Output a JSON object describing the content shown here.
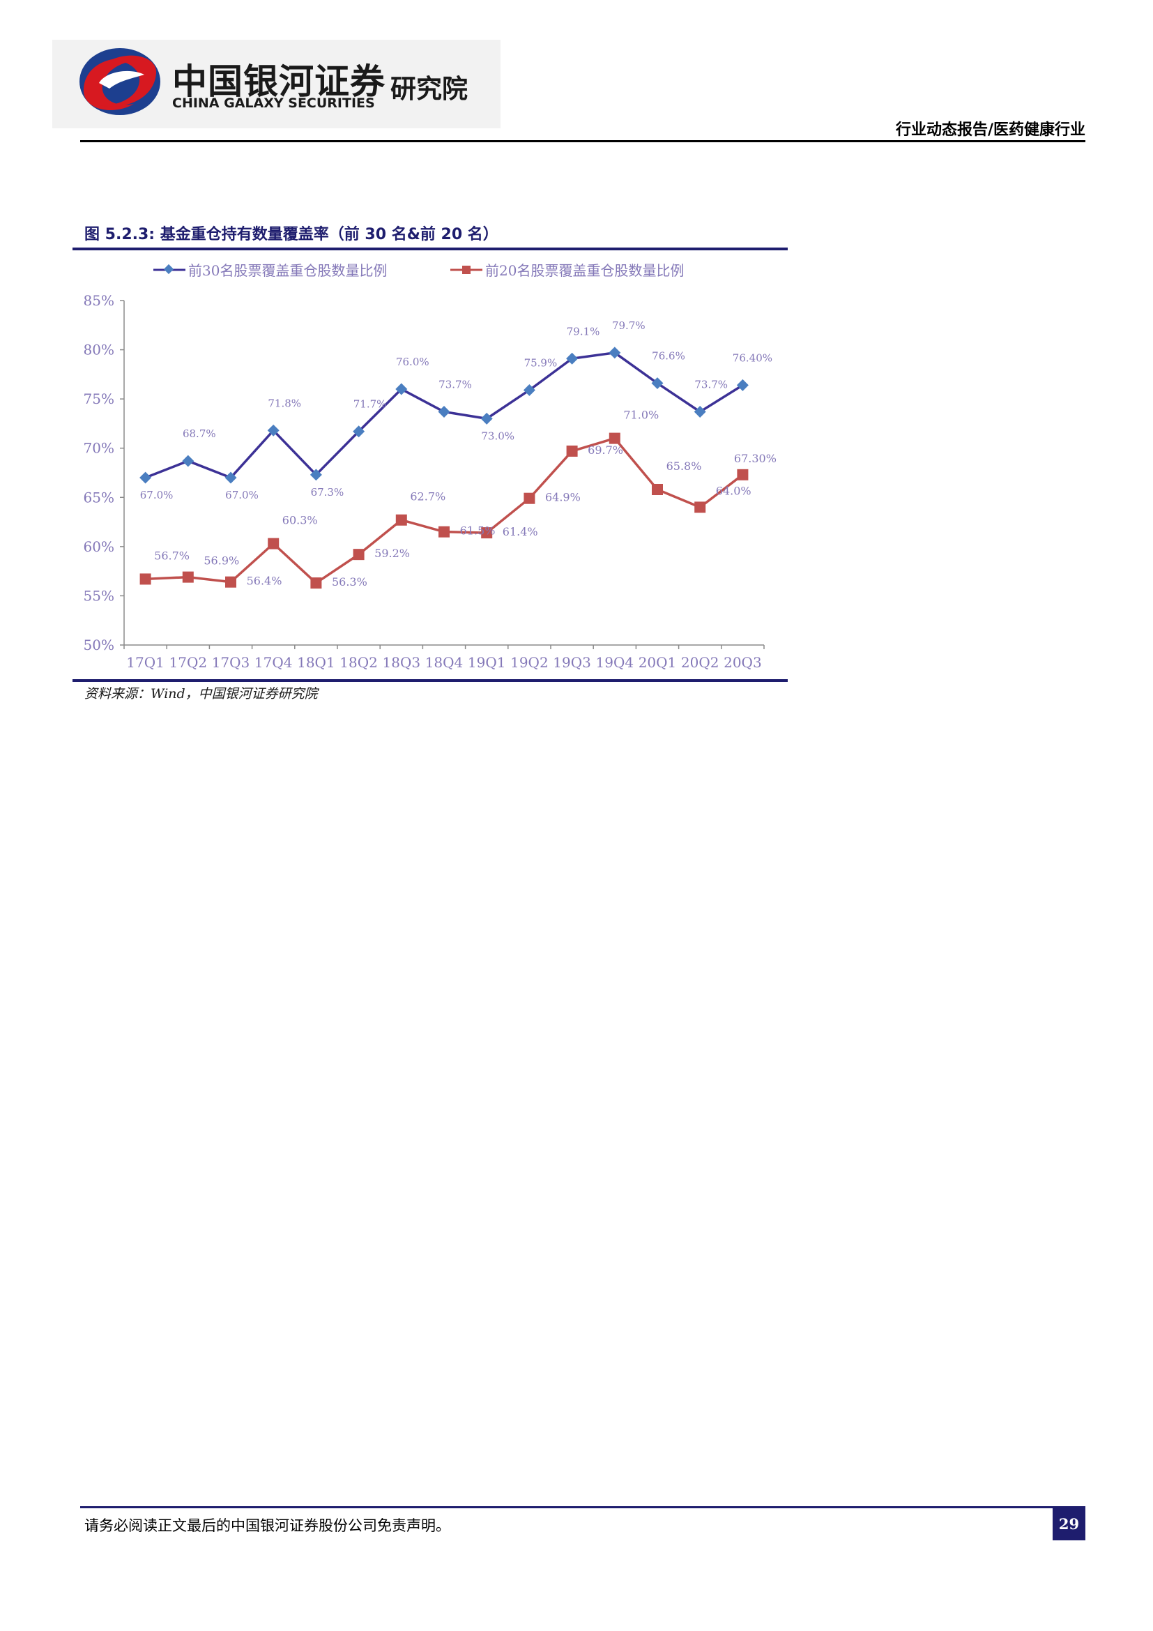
{
  "header": {
    "company_cn": "中国银河证券",
    "company_en": "CHINA GALAXY SECURITIES",
    "institute": "研究院",
    "report_type": "行业动态报告/医药健康行业"
  },
  "figure": {
    "title": "图 5.2.3:  基金重仓持有数量覆盖率（前 30 名&前 20 名）",
    "source": "资料来源：Wind，中国银河证券研究院"
  },
  "colors": {
    "brand_navy": "#1e1d6e",
    "series_top30": "#3c3196",
    "series_top30_marker": "#4a7ec0",
    "series_top20": "#c0504d",
    "logo_red": "#d71920",
    "logo_blue": "#1d3f8f",
    "axis_text": "#8478b8"
  },
  "chart_data": {
    "type": "line",
    "categories": [
      "17Q1",
      "17Q2",
      "17Q3",
      "17Q4",
      "18Q1",
      "18Q2",
      "18Q3",
      "18Q4",
      "19Q1",
      "19Q2",
      "19Q3",
      "19Q4",
      "20Q1",
      "20Q2",
      "20Q3"
    ],
    "ylim": [
      50,
      85
    ],
    "yticks": [
      50,
      55,
      60,
      65,
      70,
      75,
      80,
      85
    ],
    "ytick_labels": [
      "50%",
      "55%",
      "60%",
      "65%",
      "70%",
      "75%",
      "80%",
      "85%"
    ],
    "legend_position": "top",
    "grid": false,
    "series": [
      {
        "name": "前30名股票覆盖重仓股数量比例",
        "marker": "diamond",
        "values": [
          67.0,
          68.7,
          67.0,
          71.8,
          67.3,
          71.7,
          76.0,
          73.7,
          73.0,
          75.9,
          79.1,
          79.7,
          76.6,
          73.7,
          76.4
        ],
        "labels": [
          "67.0%",
          "68.7%",
          "67.0%",
          "71.8%",
          "67.3%",
          "71.7%",
          "76.0%",
          "73.7%",
          "73.0%",
          "75.9%",
          "79.1%",
          "79.7%",
          "76.6%",
          "73.7%",
          "76.40%"
        ]
      },
      {
        "name": "前20名股票覆盖重仓股数量比例",
        "marker": "square",
        "values": [
          56.7,
          56.9,
          56.4,
          60.3,
          56.3,
          59.2,
          62.7,
          61.5,
          61.4,
          64.9,
          69.7,
          71.0,
          65.8,
          64.0,
          67.3
        ],
        "labels": [
          "56.7%",
          "56.9%",
          "56.4%",
          "60.3%",
          "56.3%",
          "59.2%",
          "62.7%",
          "61.5%",
          "61.4%",
          "64.9%",
          "69.7%",
          "71.0%",
          "65.8%",
          "64.0%",
          "67.30%"
        ]
      }
    ]
  },
  "footer": {
    "disclaimer": "请务必阅读正文最后的中国银河证券股份公司免责声明。",
    "page_number": "29"
  }
}
